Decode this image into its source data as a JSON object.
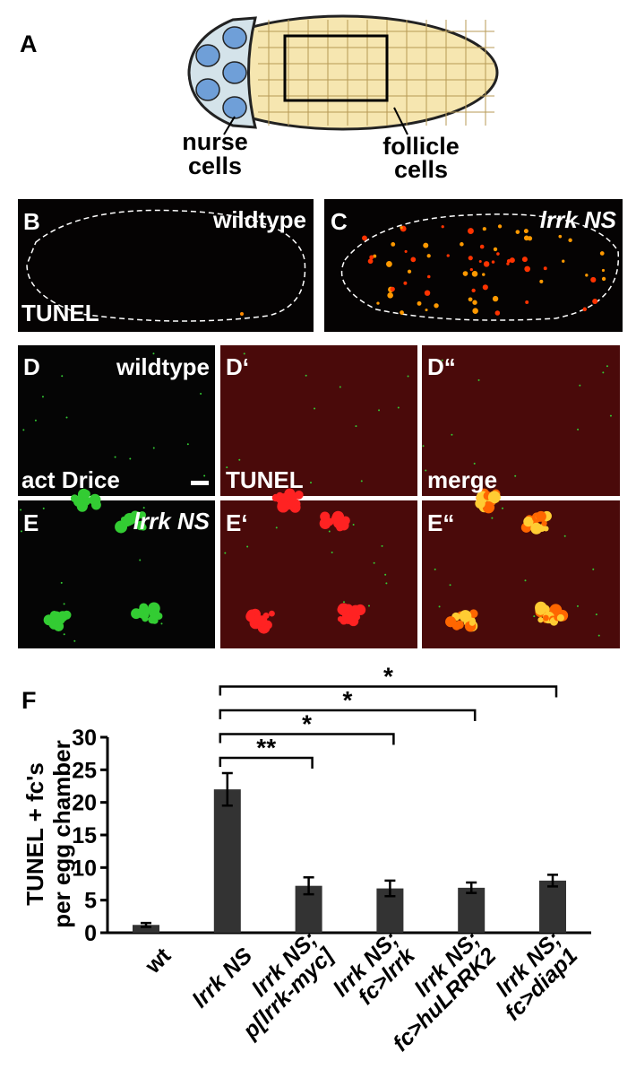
{
  "panels": {
    "A": {
      "label": "A",
      "nurse": [
        "nurse",
        "cells"
      ],
      "follicle": [
        "follicle",
        "cells"
      ]
    },
    "B": {
      "label": "B",
      "genotype": "wildtype",
      "stain": "TUNEL"
    },
    "C": {
      "label": "C",
      "genotype": "lrrk NS"
    },
    "D": {
      "label": "D",
      "genotype": "wildtype",
      "stain": "act Drice"
    },
    "D1": {
      "label": "D‘",
      "stain": "TUNEL"
    },
    "D2": {
      "label": "D“",
      "stain": "merge"
    },
    "E": {
      "label": "E",
      "genotype": "lrrk NS"
    },
    "E1": {
      "label": "E‘"
    },
    "E2": {
      "label": "E“"
    },
    "F": {
      "label": "F"
    }
  },
  "chart_data": {
    "type": "bar",
    "ylabel": [
      "TUNEL + fc's",
      "per egg chamber"
    ],
    "categories": [
      [
        "wt"
      ],
      [
        "lrrk NS"
      ],
      [
        "lrrk NS;",
        "p[lrrk-myc]"
      ],
      [
        "lrrk NS;",
        "fc>lrrk"
      ],
      [
        "lrrk NS;",
        "fc>huLRRK2"
      ],
      [
        "lrrk NS;",
        "fc>diap1"
      ]
    ],
    "values": [
      1.2,
      22,
      7.2,
      6.8,
      6.9,
      8
    ],
    "errors": [
      0.3,
      2.5,
      1.3,
      1.2,
      0.8,
      0.9
    ],
    "color": "#333333",
    "ylim": [
      0,
      30
    ],
    "yticks": [
      0,
      5,
      10,
      15,
      20,
      25,
      30
    ],
    "significance": [
      {
        "from": 1,
        "to": 2,
        "text": "**"
      },
      {
        "from": 1,
        "to": 3,
        "text": "*"
      },
      {
        "from": 1,
        "to": 4,
        "text": "*"
      },
      {
        "from": 1,
        "to": 5,
        "text": "*"
      }
    ]
  }
}
